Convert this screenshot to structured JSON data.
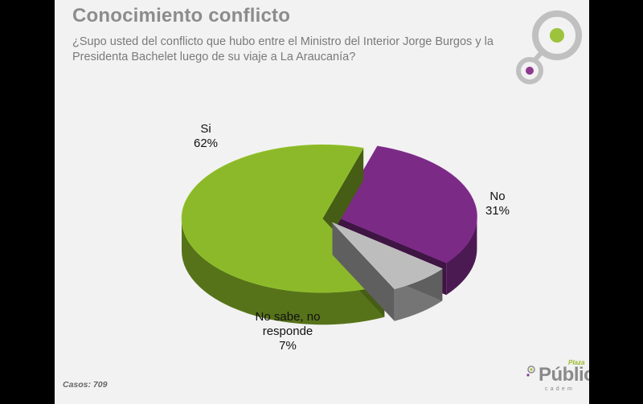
{
  "slide": {
    "title": "Conocimiento conflicto",
    "question": "¿Supo usted del conflicto que hubo entre el Ministro del Interior Jorge Burgos y la Presidenta Bachelet luego de su viaje a La Araucanía?",
    "footnote": "Casos: 709"
  },
  "brand": {
    "main": "Pública",
    "plaza": "Plaza",
    "sub": "cadem"
  },
  "colors": {
    "si": "#8cb92a",
    "no": "#7b2a86",
    "ns": "#bdbdbd",
    "logo_outer": "#c0c0c0",
    "logo_green": "#9cc33b",
    "logo_purple": "#8e3a8f"
  },
  "chart_data": {
    "type": "pie",
    "style": "3d, exploded",
    "slices": [
      {
        "name": "Si",
        "label_lines": [
          "Si",
          "62%"
        ],
        "value": 62
      },
      {
        "name": "No",
        "label_lines": [
          "No",
          "31%"
        ],
        "value": 31
      },
      {
        "name": "No sabe, no responde",
        "label_lines": [
          "No sabe, no",
          "responde",
          "7%"
        ],
        "value": 7
      }
    ],
    "legend": "none"
  }
}
